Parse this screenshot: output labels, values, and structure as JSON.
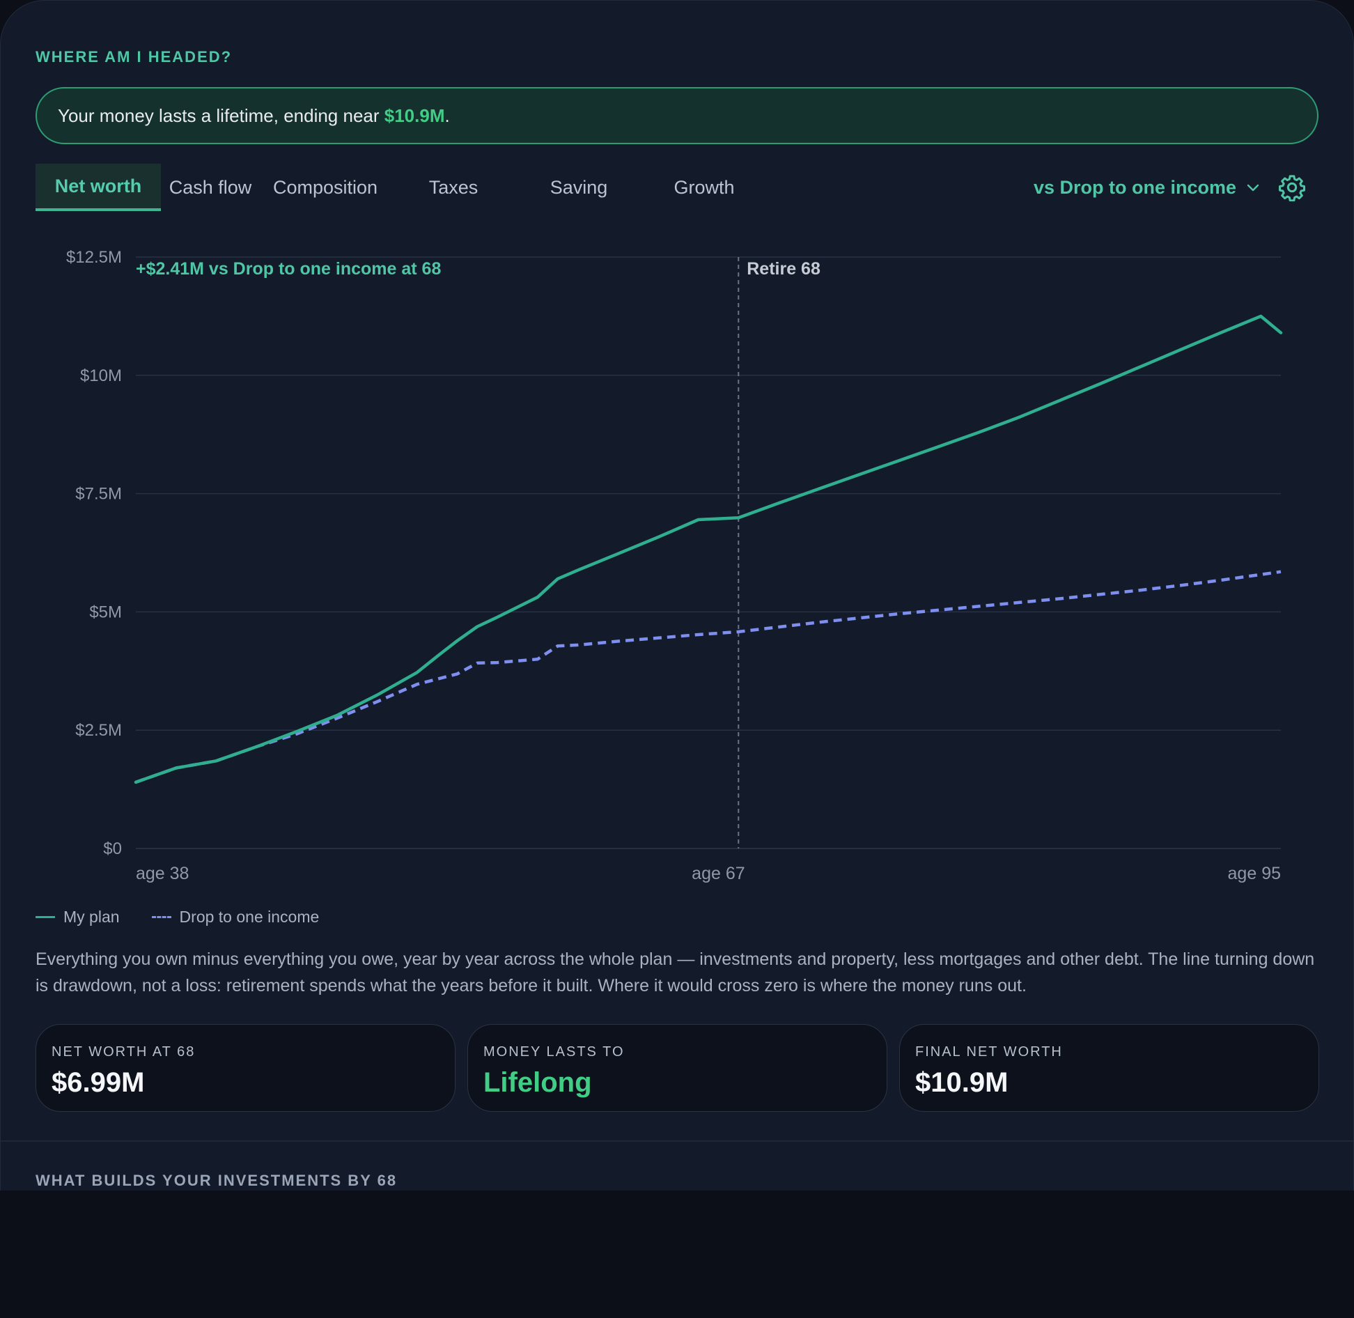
{
  "header": {
    "eyebrow": "WHERE AM I HEADED?",
    "banner_prefix": "Your money lasts a lifetime, ending near ",
    "banner_highlight": "$10.9M",
    "banner_suffix": "."
  },
  "tabs": [
    {
      "label": "Net worth",
      "active": true
    },
    {
      "label": "Cash flow"
    },
    {
      "label": "Composition"
    },
    {
      "label": "Taxes"
    },
    {
      "label": "Saving"
    },
    {
      "label": "Growth"
    }
  ],
  "compare": {
    "label": "vs Drop to one income",
    "icon": "chevron-down-icon"
  },
  "settings": {
    "icon": "gear-icon"
  },
  "chart_data": {
    "type": "line",
    "title": "",
    "xlabel": "",
    "ylabel": "",
    "ylim": [
      0,
      12500000
    ],
    "xlim": [
      38,
      95
    ],
    "y_ticks": [
      {
        "value": 12500000,
        "label": "$12.5M"
      },
      {
        "value": 10000000,
        "label": "$10M"
      },
      {
        "value": 7500000,
        "label": "$7.5M"
      },
      {
        "value": 5000000,
        "label": "$5M"
      },
      {
        "value": 2500000,
        "label": "$2.5M"
      },
      {
        "value": 0,
        "label": "$0"
      }
    ],
    "x_ticks": [
      {
        "value": 38,
        "label": "age 38"
      },
      {
        "value": 67,
        "label": "age 67"
      },
      {
        "value": 95,
        "label": "age 95"
      }
    ],
    "grid": true,
    "legend": "bottom-left",
    "annotation": "+$2.41M vs Drop to one income at 68",
    "marker": {
      "x": 68,
      "label": "Retire 68"
    },
    "series": [
      {
        "name": "My plan",
        "color": "#2fae90",
        "style": "solid",
        "x": [
          38,
          40,
          42,
          44,
          46,
          48,
          50,
          52,
          53,
          54,
          55,
          56,
          58,
          59,
          60,
          62,
          64,
          66,
          68,
          70,
          72,
          74,
          76,
          78,
          80,
          82,
          84,
          86,
          88,
          90,
          92,
          94,
          95
        ],
        "y": [
          1400000,
          1700000,
          1850000,
          2150000,
          2470000,
          2810000,
          3240000,
          3720000,
          4060000,
          4390000,
          4690000,
          4890000,
          5310000,
          5700000,
          5880000,
          6230000,
          6580000,
          6950000,
          6990000,
          7300000,
          7600000,
          7900000,
          8200000,
          8500000,
          8800000,
          9120000,
          9470000,
          9820000,
          10180000,
          10540000,
          10900000,
          11250000,
          10900000
        ]
      },
      {
        "name": "Drop to one income",
        "color": "#7e8ff0",
        "style": "dashed",
        "x": [
          38,
          40,
          42,
          44,
          46,
          48,
          50,
          52,
          54,
          55,
          56,
          58,
          59,
          60,
          62,
          64,
          66,
          68,
          70,
          72,
          74,
          76,
          78,
          80,
          82,
          84,
          86,
          88,
          90,
          92,
          95
        ],
        "y": [
          1400000,
          1700000,
          1850000,
          2150000,
          2420000,
          2750000,
          3100000,
          3470000,
          3690000,
          3920000,
          3930000,
          4000000,
          4280000,
          4300000,
          4380000,
          4450000,
          4520000,
          4580000,
          4680000,
          4780000,
          4870000,
          4960000,
          5040000,
          5120000,
          5200000,
          5280000,
          5370000,
          5460000,
          5560000,
          5670000,
          5850000
        ]
      }
    ]
  },
  "description": "Everything you own minus everything you owe, year by year across the whole plan — investments and property, less mortgages and other debt. The line turning down is drawdown, not a loss: retirement spends what the years before it built. Where it would cross zero is where the money runs out.",
  "stats": [
    {
      "label": "NET WORTH AT 68",
      "value": "$6.99M"
    },
    {
      "label": "MONEY LASTS TO",
      "value": "Lifelong",
      "color": "#42cd86"
    },
    {
      "label": "FINAL NET WORTH",
      "value": "$10.9M"
    }
  ],
  "next_section": {
    "eyebrow": "WHAT BUILDS YOUR INVESTMENTS BY 68"
  }
}
